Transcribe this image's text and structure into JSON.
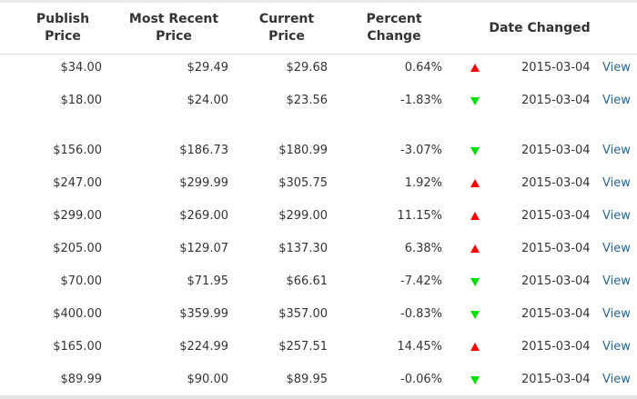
{
  "headers": {
    "publish_price": "Publish\nPrice",
    "most_recent_price": "Most Recent\nPrice",
    "current_price": "Current\nPrice",
    "percent_change": "Percent\nChange",
    "date_changed": "Date Changed"
  },
  "rows": [
    {
      "publish": "$34.00",
      "recent": "$29.49",
      "current": "$29.68",
      "change": "0.64%",
      "direction": "up",
      "date": "2015-03-04",
      "link": "View"
    },
    {
      "publish": "$18.00",
      "recent": "$24.00",
      "current": "$23.56",
      "change": "-1.83%",
      "direction": "down",
      "date": "2015-03-04",
      "link": "View"
    },
    {
      "publish": "$156.00",
      "recent": "$186.73",
      "current": "$180.99",
      "change": "-3.07%",
      "direction": "down",
      "date": "2015-03-04",
      "link": "View"
    },
    {
      "publish": "$247.00",
      "recent": "$299.99",
      "current": "$305.75",
      "change": "1.92%",
      "direction": "up",
      "date": "2015-03-04",
      "link": "View"
    },
    {
      "publish": "$299.00",
      "recent": "$269.00",
      "current": "$299.00",
      "change": "11.15%",
      "direction": "up",
      "date": "2015-03-04",
      "link": "View"
    },
    {
      "publish": "$205.00",
      "recent": "$129.07",
      "current": "$137.30",
      "change": "6.38%",
      "direction": "up",
      "date": "2015-03-04",
      "link": "View"
    },
    {
      "publish": "$70.00",
      "recent": "$71.95",
      "current": "$66.61",
      "change": "-7.42%",
      "direction": "down",
      "date": "2015-03-04",
      "link": "View"
    },
    {
      "publish": "$400.00",
      "recent": "$359.99",
      "current": "$357.00",
      "change": "-0.83%",
      "direction": "down",
      "date": "2015-03-04",
      "link": "View"
    },
    {
      "publish": "$165.00",
      "recent": "$224.99",
      "current": "$257.51",
      "change": "14.45%",
      "direction": "up",
      "date": "2015-03-04",
      "link": "View"
    },
    {
      "publish": "$89.99",
      "recent": "$90.00",
      "current": "$89.95",
      "change": "-0.06%",
      "direction": "down",
      "date": "2015-03-04",
      "link": "View"
    }
  ],
  "colors": {
    "up": "#ff0000",
    "down": "#00e000",
    "link": "#2a6496"
  },
  "icons": {
    "up": "triangle-up-icon",
    "down": "triangle-down-icon"
  }
}
